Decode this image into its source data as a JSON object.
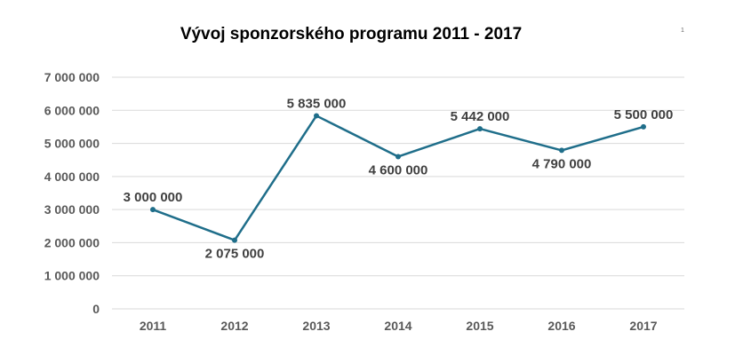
{
  "page_number": "1",
  "chart_data": {
    "type": "line",
    "title": "Vývoj sponzorského programu 2011 - 2017",
    "xlabel": "",
    "ylabel": "",
    "categories": [
      "2011",
      "2012",
      "2013",
      "2014",
      "2015",
      "2016",
      "2017"
    ],
    "values": [
      3000000,
      2075000,
      5835000,
      4600000,
      5442000,
      4790000,
      5500000
    ],
    "data_labels": [
      "3 000 000",
      "2 075 000",
      "5 835 000",
      "4 600 000",
      "5 442 000",
      "4 790 000",
      "5 500 000"
    ],
    "data_label_positions": [
      "above",
      "below",
      "above",
      "below",
      "above",
      "below",
      "above"
    ],
    "ylim": [
      0,
      7000000
    ],
    "y_ticks": [
      0,
      1000000,
      2000000,
      3000000,
      4000000,
      5000000,
      6000000,
      7000000
    ],
    "y_tick_labels": [
      "0",
      "1 000 000",
      "2 000 000",
      "3 000 000",
      "4 000 000",
      "5 000 000",
      "6 000 000",
      "7 000 000"
    ],
    "grid": true,
    "legend": "none",
    "line_color": "#1f6e8a",
    "grid_color": "#d9d9d9"
  }
}
